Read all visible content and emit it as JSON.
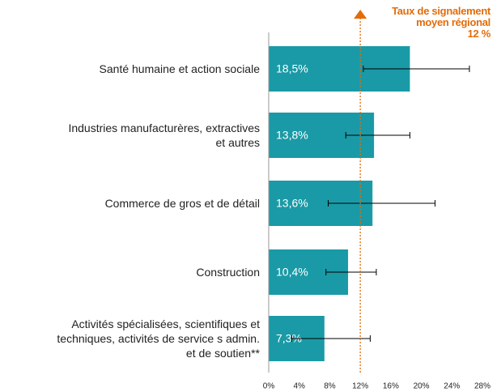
{
  "chart_data": {
    "type": "bar",
    "orientation": "horizontal",
    "categories": [
      "Santé humaine et action sociale",
      "Industries manufacturères, extractives\net autres",
      "Commerce de gros et de détail",
      "Construction",
      "Activités spécialisées, scientifiques et\ntechniques, activités de service s admin.\net de soutien**"
    ],
    "values": [
      18.5,
      13.8,
      13.6,
      10.4,
      7.3
    ],
    "value_labels": [
      "18,5%",
      "13,8%",
      "13,6%",
      "10,4%",
      "7,3%"
    ],
    "ci_low": [
      12.4,
      10.1,
      7.8,
      7.5,
      3.0
    ],
    "ci_high": [
      26.3,
      18.5,
      21.8,
      14.1,
      13.3
    ],
    "color": "#1a9aa6",
    "xlim": [
      0,
      28
    ],
    "xticks": [
      {
        "value": 0,
        "label": "0%"
      },
      {
        "value": 4,
        "label": "4%"
      },
      {
        "value": 8,
        "label": "8%"
      },
      {
        "value": 12,
        "label": "12%"
      },
      {
        "value": 16,
        "label": "16%"
      },
      {
        "value": 20,
        "label": "20%"
      },
      {
        "value": 24,
        "label": "24%"
      },
      {
        "value": 28,
        "label": "28%"
      }
    ],
    "reference_line": {
      "value": 12,
      "label": "Taux de signalement\nmoyen régional\n12 %",
      "color": "#e36c0a"
    }
  }
}
